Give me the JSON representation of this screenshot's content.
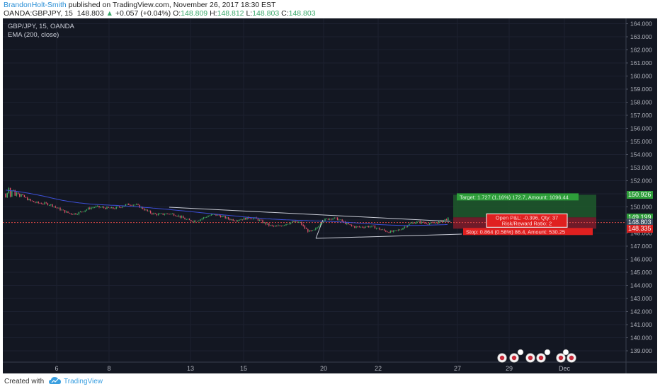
{
  "header": {
    "author": "BrandonHolt-Smith",
    "published_text": "published on TradingView.com, November 26, 2017 18:30 EST",
    "symbol": "OANDA:GBPJPY, 15",
    "last": "148.803",
    "change": "+0.057 (+0.04%)",
    "open_label": "O:",
    "open": "148.809",
    "high_label": "H:",
    "high": "148.812",
    "low_label": "L:",
    "low": "148.803",
    "close_label": "C:",
    "close": "148.803"
  },
  "legend": {
    "title": "GBP/JPY, 15, OANDA",
    "indicator": "EMA (200, close)"
  },
  "price_axis": {
    "ticks": [
      "164.000",
      "163.000",
      "162.000",
      "161.000",
      "160.000",
      "159.000",
      "158.000",
      "157.000",
      "156.000",
      "155.000",
      "154.000",
      "153.000",
      "152.000",
      "151.000",
      "150.000",
      "149.000",
      "148.000",
      "147.000",
      "146.000",
      "145.000",
      "144.000",
      "143.000",
      "142.000",
      "141.000",
      "140.000",
      "139.000"
    ],
    "tags": [
      {
        "text": "150.926",
        "color": "#2e9e3a"
      },
      {
        "text": "149.199",
        "color": "#2e9e3a"
      },
      {
        "text": "148.803",
        "color": "#3b4c5e"
      },
      {
        "text": "148.335",
        "color": "#d62020"
      }
    ]
  },
  "time_axis": {
    "ticks": [
      "6",
      "8",
      "13",
      "15",
      "20",
      "22",
      "27",
      "29",
      "Dec"
    ]
  },
  "position": {
    "target_text": "Target: 1.727 (1.16%) 172.7, Amount: 1096.44",
    "open_text": "Open P&L: -0.396, Qty: 37",
    "ratio_text": "Risk/Reward Ratio: 2",
    "stop_text": "Stop: 0.864 (0.58%) 86.4, Amount: 530.25"
  },
  "chart_data": {
    "type": "candlestick",
    "instrument": "GBP/JPY",
    "timeframe": "15",
    "price_range": [
      138.6,
      164.6
    ],
    "x_ticks": [
      "6",
      "8",
      "13",
      "15",
      "20",
      "22",
      "27",
      "29",
      "Dec"
    ],
    "current_price": 148.803,
    "approx_close_path": [
      {
        "x": "start",
        "y": 151.0
      },
      {
        "x": "6",
        "y": 149.8
      },
      {
        "x": "8",
        "y": 150.0
      },
      {
        "x": "13",
        "y": 149.3
      },
      {
        "x": "15",
        "y": 148.9
      },
      {
        "x": "20",
        "y": 148.8
      },
      {
        "x": "22",
        "y": 148.4
      },
      {
        "x": "27",
        "y": 148.8
      }
    ],
    "position_levels": {
      "target": 150.926,
      "entry": 149.199,
      "stop": 148.335
    }
  },
  "footer": {
    "created_with": "Created with",
    "brand": "TradingView"
  }
}
